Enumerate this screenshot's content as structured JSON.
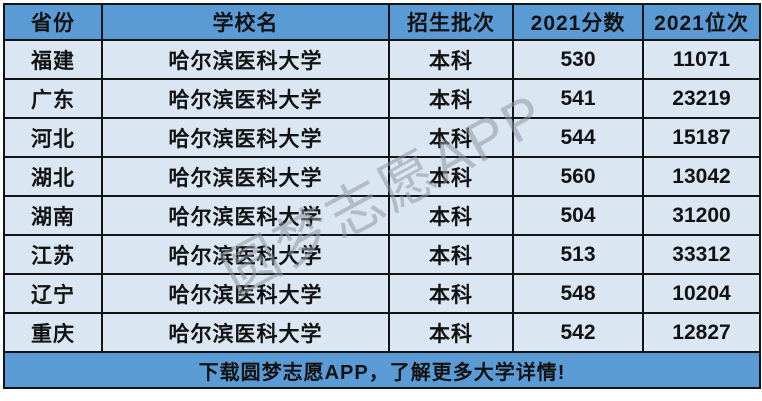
{
  "table": {
    "columns": [
      "省份",
      "学校名",
      "招生批次",
      "2021分数",
      "2021位次"
    ],
    "rows": [
      [
        "福建",
        "哈尔滨医科大学",
        "本科",
        "530",
        "11071"
      ],
      [
        "广东",
        "哈尔滨医科大学",
        "本科",
        "541",
        "23219"
      ],
      [
        "河北",
        "哈尔滨医科大学",
        "本科",
        "544",
        "15187"
      ],
      [
        "湖北",
        "哈尔滨医科大学",
        "本科",
        "560",
        "13042"
      ],
      [
        "湖南",
        "哈尔滨医科大学",
        "本科",
        "504",
        "31200"
      ],
      [
        "江苏",
        "哈尔滨医科大学",
        "本科",
        "513",
        "33312"
      ],
      [
        "辽宁",
        "哈尔滨医科大学",
        "本科",
        "548",
        "10204"
      ],
      [
        "重庆",
        "哈尔滨医科大学",
        "本科",
        "542",
        "12827"
      ]
    ]
  },
  "footer": {
    "text": "下载圆梦志愿APP，了解更多大学详情!"
  },
  "watermark": {
    "text": "圆梦志愿APP"
  },
  "colors": {
    "header_bg": "#5b9bd5",
    "row_bg": "#dae6f1",
    "footer_bg": "#5b9bd5",
    "border": "#141414",
    "text": "#121212",
    "watermark": "rgba(144,151,163,0.55)"
  }
}
